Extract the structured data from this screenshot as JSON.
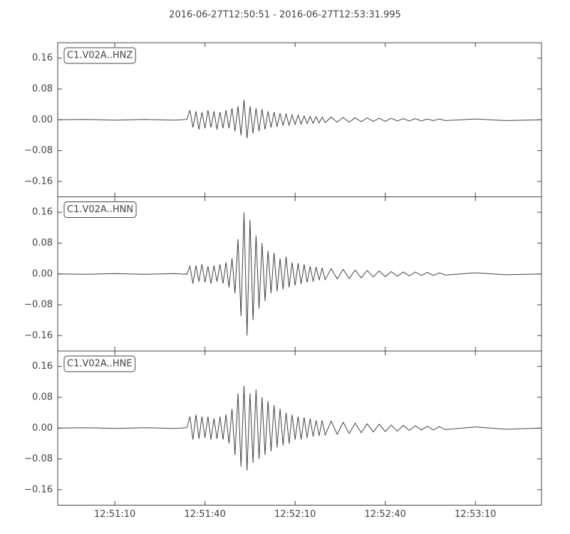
{
  "chart_data": [
    {
      "type": "line",
      "title": "2016-06-27T12:50:51  -  2016-06-27T12:53:31.995",
      "x": [
        "12:50:51",
        "12:51:00",
        "12:51:10",
        "12:51:20",
        "12:51:30",
        "12:51:34",
        "12:51:35",
        "12:51:36",
        "12:51:37",
        "12:51:38",
        "12:51:39",
        "12:51:40",
        "12:51:41",
        "12:51:42",
        "12:51:43",
        "12:51:44",
        "12:51:45",
        "12:51:46",
        "12:51:47",
        "12:51:48",
        "12:51:49",
        "12:51:50",
        "12:51:51",
        "12:51:52",
        "12:51:53",
        "12:51:54",
        "12:51:55",
        "12:51:56",
        "12:51:57",
        "12:51:58",
        "12:51:59",
        "12:52:00",
        "12:52:01",
        "12:52:02",
        "12:52:03",
        "12:52:04",
        "12:52:05",
        "12:52:06",
        "12:52:07",
        "12:52:08",
        "12:52:09",
        "12:52:10",
        "12:52:11",
        "12:52:12",
        "12:52:13",
        "12:52:14",
        "12:52:15",
        "12:52:16",
        "12:52:17",
        "12:52:18",
        "12:52:19",
        "12:52:20",
        "12:52:22",
        "12:52:24",
        "12:52:26",
        "12:52:28",
        "12:52:30",
        "12:52:32",
        "12:52:34",
        "12:52:36",
        "12:52:38",
        "12:52:40",
        "12:52:42",
        "12:52:44",
        "12:52:46",
        "12:52:48",
        "12:52:50",
        "12:52:52",
        "12:52:54",
        "12:52:56",
        "12:52:58",
        "12:53:00",
        "12:53:10",
        "12:53:20",
        "12:53:31.995"
      ],
      "series": [
        {
          "name": "C1.V02A..HNZ",
          "color": "#444444",
          "values": [
            0,
            0.001,
            -0.001,
            0.001,
            -0.001,
            0.001,
            0.025,
            -0.02,
            0.022,
            -0.025,
            0.02,
            -0.022,
            0.025,
            -0.02,
            0.022,
            -0.025,
            0.02,
            -0.022,
            0.025,
            -0.022,
            0.03,
            -0.03,
            0.035,
            -0.04,
            0.052,
            -0.048,
            0.035,
            -0.035,
            0.03,
            -0.03,
            0.028,
            -0.025,
            0.022,
            -0.02,
            0.02,
            -0.018,
            0.017,
            -0.015,
            0.015,
            -0.014,
            0.013,
            -0.012,
            0.012,
            -0.011,
            0.01,
            -0.01,
            0.009,
            -0.009,
            0.008,
            -0.008,
            0.007,
            -0.007,
            0.007,
            -0.006,
            0.006,
            -0.006,
            0.005,
            -0.005,
            0.005,
            -0.004,
            0.004,
            -0.004,
            0.004,
            -0.003,
            0.003,
            -0.003,
            0.003,
            -0.003,
            0.002,
            -0.002,
            0.002,
            -0.002,
            0.002,
            -0.002,
            0
          ]
        }
      ],
      "xlim": [
        "12:50:51",
        "12:53:31.995"
      ],
      "ylim": [
        -0.2,
        0.2
      ],
      "yticks": [
        {
          "value": -0.16,
          "label": "−0.16"
        },
        {
          "value": -0.08,
          "label": "−0.08"
        },
        {
          "value": 0,
          "label": "0.00"
        },
        {
          "value": 0.08,
          "label": "0.08"
        },
        {
          "value": 0.16,
          "label": "0.16"
        }
      ]
    },
    {
      "type": "line",
      "x": [
        "12:50:51",
        "12:51:00",
        "12:51:10",
        "12:51:20",
        "12:51:30",
        "12:51:34",
        "12:51:35",
        "12:51:36",
        "12:51:37",
        "12:51:38",
        "12:51:39",
        "12:51:40",
        "12:51:41",
        "12:51:42",
        "12:51:43",
        "12:51:44",
        "12:51:45",
        "12:51:46",
        "12:51:47",
        "12:51:48",
        "12:51:49",
        "12:51:50",
        "12:51:51",
        "12:51:52",
        "12:51:53",
        "12:51:54",
        "12:51:55",
        "12:51:56",
        "12:51:57",
        "12:51:58",
        "12:51:59",
        "12:52:00",
        "12:52:01",
        "12:52:02",
        "12:52:03",
        "12:52:04",
        "12:52:05",
        "12:52:06",
        "12:52:07",
        "12:52:08",
        "12:52:09",
        "12:52:10",
        "12:52:11",
        "12:52:12",
        "12:52:13",
        "12:52:14",
        "12:52:15",
        "12:52:16",
        "12:52:17",
        "12:52:18",
        "12:52:19",
        "12:52:20",
        "12:52:22",
        "12:52:24",
        "12:52:26",
        "12:52:28",
        "12:52:30",
        "12:52:32",
        "12:52:34",
        "12:52:36",
        "12:52:38",
        "12:52:40",
        "12:52:42",
        "12:52:44",
        "12:52:46",
        "12:52:48",
        "12:52:50",
        "12:52:52",
        "12:52:54",
        "12:52:56",
        "12:52:58",
        "12:53:00",
        "12:53:10",
        "12:53:20",
        "12:53:31.995"
      ],
      "series": [
        {
          "name": "C1.V02A..HNN",
          "color": "#444444",
          "values": [
            0,
            -0.001,
            0.001,
            -0.001,
            0.001,
            -0.001,
            0.02,
            -0.025,
            0.022,
            -0.02,
            0.025,
            -0.022,
            0.02,
            -0.025,
            0.022,
            -0.02,
            0.025,
            -0.025,
            0.03,
            -0.035,
            0.04,
            -0.05,
            0.09,
            -0.11,
            0.16,
            -0.16,
            0.14,
            -0.12,
            0.1,
            -0.09,
            0.08,
            -0.07,
            0.06,
            -0.05,
            0.055,
            -0.045,
            0.04,
            -0.04,
            0.045,
            -0.035,
            0.03,
            -0.03,
            0.028,
            -0.026,
            0.025,
            -0.022,
            0.02,
            -0.02,
            0.018,
            -0.016,
            0.016,
            -0.015,
            0.014,
            -0.013,
            0.012,
            -0.012,
            0.01,
            -0.01,
            0.009,
            -0.008,
            0.008,
            -0.007,
            0.006,
            -0.006,
            0.005,
            -0.005,
            0.005,
            -0.004,
            0.004,
            -0.004,
            0.003,
            -0.003,
            0.003,
            -0.002,
            0
          ]
        }
      ],
      "xlim": [
        "12:50:51",
        "12:53:31.995"
      ],
      "ylim": [
        -0.2,
        0.2
      ],
      "yticks": [
        {
          "value": -0.16,
          "label": "−0.16"
        },
        {
          "value": -0.08,
          "label": "−0.08"
        },
        {
          "value": 0,
          "label": "0.00"
        },
        {
          "value": 0.08,
          "label": "0.08"
        },
        {
          "value": 0.16,
          "label": "0.16"
        }
      ]
    },
    {
      "type": "line",
      "x": [
        "12:50:51",
        "12:51:00",
        "12:51:10",
        "12:51:20",
        "12:51:30",
        "12:51:34",
        "12:51:35",
        "12:51:36",
        "12:51:37",
        "12:51:38",
        "12:51:39",
        "12:51:40",
        "12:51:41",
        "12:51:42",
        "12:51:43",
        "12:51:44",
        "12:51:45",
        "12:51:46",
        "12:51:47",
        "12:51:48",
        "12:51:49",
        "12:51:50",
        "12:51:51",
        "12:51:52",
        "12:51:53",
        "12:51:54",
        "12:51:55",
        "12:51:56",
        "12:51:57",
        "12:51:58",
        "12:51:59",
        "12:52:00",
        "12:52:01",
        "12:52:02",
        "12:52:03",
        "12:52:04",
        "12:52:05",
        "12:52:06",
        "12:52:07",
        "12:52:08",
        "12:52:09",
        "12:52:10",
        "12:52:11",
        "12:52:12",
        "12:52:13",
        "12:52:14",
        "12:52:15",
        "12:52:16",
        "12:52:17",
        "12:52:18",
        "12:52:19",
        "12:52:20",
        "12:52:22",
        "12:52:24",
        "12:52:26",
        "12:52:28",
        "12:52:30",
        "12:52:32",
        "12:52:34",
        "12:52:36",
        "12:52:38",
        "12:52:40",
        "12:52:42",
        "12:52:44",
        "12:52:46",
        "12:52:48",
        "12:52:50",
        "12:52:52",
        "12:52:54",
        "12:52:56",
        "12:52:58",
        "12:53:00",
        "12:53:10",
        "12:53:20",
        "12:53:31.995"
      ],
      "series": [
        {
          "name": "C1.V02A..HNE",
          "color": "#444444",
          "values": [
            0,
            0.001,
            -0.001,
            0.001,
            -0.001,
            0.001,
            0.03,
            -0.03,
            0.035,
            -0.028,
            0.03,
            -0.025,
            0.03,
            -0.03,
            0.025,
            -0.028,
            0.03,
            -0.03,
            0.035,
            -0.04,
            0.05,
            -0.07,
            0.09,
            -0.1,
            0.11,
            -0.11,
            0.09,
            -0.09,
            0.1,
            -0.08,
            0.08,
            -0.07,
            0.07,
            -0.06,
            0.06,
            -0.05,
            0.05,
            -0.045,
            0.04,
            -0.04,
            0.035,
            -0.03,
            0.03,
            -0.03,
            0.028,
            -0.025,
            0.025,
            -0.022,
            0.02,
            -0.02,
            0.02,
            -0.018,
            0.018,
            -0.016,
            0.015,
            -0.014,
            0.013,
            -0.012,
            0.011,
            -0.01,
            0.01,
            -0.009,
            0.008,
            -0.008,
            0.007,
            -0.006,
            0.006,
            -0.005,
            0.005,
            -0.005,
            0.004,
            -0.004,
            0.003,
            -0.003,
            0
          ]
        }
      ],
      "xlim": [
        "12:50:51",
        "12:53:31.995"
      ],
      "xticks": [
        "12:51:10",
        "12:51:40",
        "12:52:10",
        "12:52:40",
        "12:53:10"
      ],
      "ylim": [
        -0.2,
        0.2
      ],
      "yticks": [
        {
          "value": -0.16,
          "label": "−0.16"
        },
        {
          "value": -0.08,
          "label": "−0.08"
        },
        {
          "value": 0,
          "label": "0.00"
        },
        {
          "value": 0.08,
          "label": "0.08"
        },
        {
          "value": 0.16,
          "label": "0.16"
        }
      ]
    }
  ]
}
